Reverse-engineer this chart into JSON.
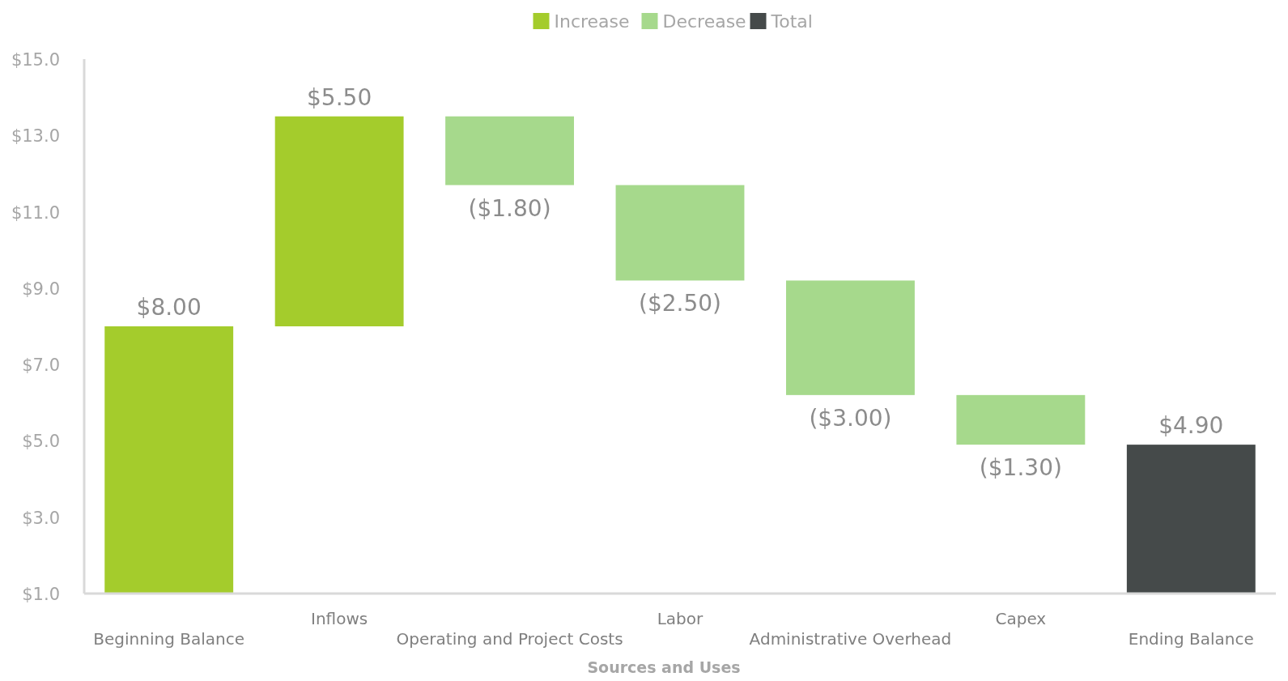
{
  "chart_data": {
    "type": "bar",
    "xlabel": "Sources and Uses",
    "categories": [
      "Beginning Balance",
      "Inflows",
      "Operating and Project Costs",
      "Labor",
      "Administrative Overhead",
      "Capex",
      "Ending Balance"
    ],
    "series": [
      {
        "name": "Increase",
        "color": "#a4cc2c",
        "values": [
          8,
          5.5,
          null,
          null,
          null,
          null,
          null
        ],
        "base": [
          null,
          8,
          null,
          null,
          null,
          null,
          null
        ],
        "value_labels": [
          "$8.00",
          "$5.50",
          null,
          null,
          null,
          null,
          null
        ]
      },
      {
        "name": "Decrease",
        "color": "#a6d98c",
        "values": [
          null,
          null,
          -1.8,
          -2.5,
          -3.0,
          -1.3,
          null
        ],
        "base": [
          null,
          null,
          13.5,
          11.7,
          9.2,
          6.2,
          null
        ],
        "value_labels": [
          null,
          null,
          "($1.80)",
          "($2.50)",
          "($3.00)",
          "($1.30)",
          null
        ]
      },
      {
        "name": "Total",
        "color": "#454a4a",
        "values": [
          null,
          null,
          null,
          null,
          null,
          null,
          4.9
        ],
        "value_labels": [
          null,
          null,
          null,
          null,
          null,
          null,
          "$4.90"
        ]
      }
    ],
    "ylim": [
      1,
      15
    ],
    "yticks": [
      {
        "value": 1,
        "label": "$1.0"
      },
      {
        "value": 3,
        "label": "$3.0"
      },
      {
        "value": 5,
        "label": "$5.0"
      },
      {
        "value": 7,
        "label": "$7.0"
      },
      {
        "value": 9,
        "label": "$9.0"
      },
      {
        "value": 11,
        "label": "$11.0"
      },
      {
        "value": 13,
        "label": "$13.0"
      },
      {
        "value": 15,
        "label": "$15.0"
      }
    ],
    "legend": "top"
  }
}
